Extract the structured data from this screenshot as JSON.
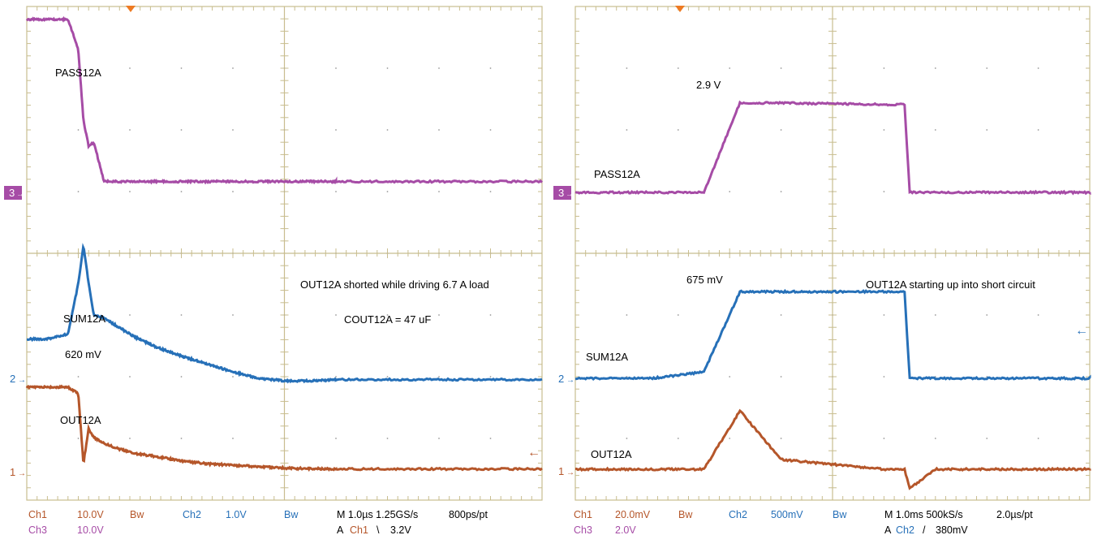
{
  "colors": {
    "ch1": "#b5562a",
    "ch2": "#2670b8",
    "ch3": "#a64ca6",
    "grid": "#c8bd8f",
    "trigger": "#ee7a22"
  },
  "chart_data": [
    {
      "type": "line",
      "subtitle": "OUT12A shorted while driving 6.7 A load",
      "note": "COUT12A = 47 uF",
      "x": [
        0,
        0.4,
        0.8,
        1.0,
        1.1,
        1.2,
        1.3,
        1.5,
        1.8,
        2.1,
        2.5,
        3.0,
        3.5,
        4.0,
        4.5,
        5.0,
        5.5,
        6.0
      ],
      "x_unit": "µs",
      "xlim": [
        0,
        10
      ],
      "series": [
        {
          "name": "PASS12A",
          "channel": 3,
          "color": "#a64ca6",
          "values": [
            23.2,
            23.2,
            23.2,
            19,
            9,
            5.5,
            6.0,
            0.5,
            0.5,
            0.5,
            0.5,
            0.5,
            0.5,
            0.5,
            0.5,
            0.5,
            0.5,
            0.5
          ]
        },
        {
          "name": "SUM12A",
          "channel": 2,
          "color": "#2670b8",
          "annotation": "620 mV",
          "values": [
            0.62,
            0.62,
            0.7,
            1.5,
            2.1,
            1.5,
            1.0,
            0.95,
            0.8,
            0.65,
            0.5,
            0.35,
            0.23,
            0.1,
            0.0,
            -0.04,
            -0.04,
            -0.02
          ]
        },
        {
          "name": "OUT12A",
          "channel": 1,
          "color": "#b5562a",
          "values": [
            29.2,
            29.2,
            29.2,
            27,
            3,
            15,
            12,
            10,
            8,
            6.5,
            5.5,
            4,
            3,
            2.5,
            2.0,
            1.5,
            1.3,
            1.2
          ]
        }
      ],
      "settings": {
        "ch1": "Ch1",
        "ch1_scale": "10.0V",
        "ch2": "Ch2",
        "ch2_scale": "1.0V",
        "ch3": "Ch3",
        "ch3_scale": "10.0V",
        "bw1": "Bw",
        "bw2": "Bw",
        "timebase": "M 1.0µs 1.25GS/s",
        "record": "800ps/pt",
        "trig_prefix": "A",
        "trig_ch": "Ch1",
        "trig_slope": "\\",
        "trig_level": "3.2V"
      }
    },
    {
      "type": "line",
      "subtitle": "OUT12A starting up into short circuit",
      "x": [
        0,
        1.5,
        2.5,
        3.2,
        4.0,
        6.0,
        6.4,
        6.5,
        7.0,
        8.0,
        10.0
      ],
      "x_unit": "ms",
      "xlim": [
        0,
        10
      ],
      "series": [
        {
          "name": "PASS12A",
          "channel": 3,
          "color": "#a64ca6",
          "annotation": "2.9 V",
          "values": [
            0,
            0,
            0,
            2.9,
            2.9,
            2.85,
            2.85,
            0,
            0,
            0,
            0
          ]
        },
        {
          "name": "SUM12A",
          "channel": 2,
          "color": "#2670b8",
          "annotation": "675 mV",
          "values": [
            0,
            0,
            0.05,
            0.675,
            0.675,
            0.675,
            0.675,
            0,
            0,
            0,
            0
          ]
        },
        {
          "name": "OUT12A",
          "channel": 1,
          "color": "#b5562a",
          "values": [
            0,
            0,
            0,
            60,
            10,
            0,
            0,
            -20,
            0,
            0,
            0
          ]
        }
      ],
      "settings": {
        "ch1": "Ch1",
        "ch1_scale": "20.0mV",
        "ch2": "Ch2",
        "ch2_scale": "500mV",
        "ch3": "Ch3",
        "ch3_scale": "2.0V",
        "bw1": "Bw",
        "bw2": "Bw",
        "timebase": "M 1.0ms 500kS/s",
        "record": "2.0µs/pt",
        "trig_prefix": "A",
        "trig_ch": "Ch2",
        "trig_slope": "/",
        "trig_level": "380mV"
      }
    }
  ],
  "markers": {
    "ch3": "3",
    "ch2": "2",
    "ch1": "1"
  }
}
